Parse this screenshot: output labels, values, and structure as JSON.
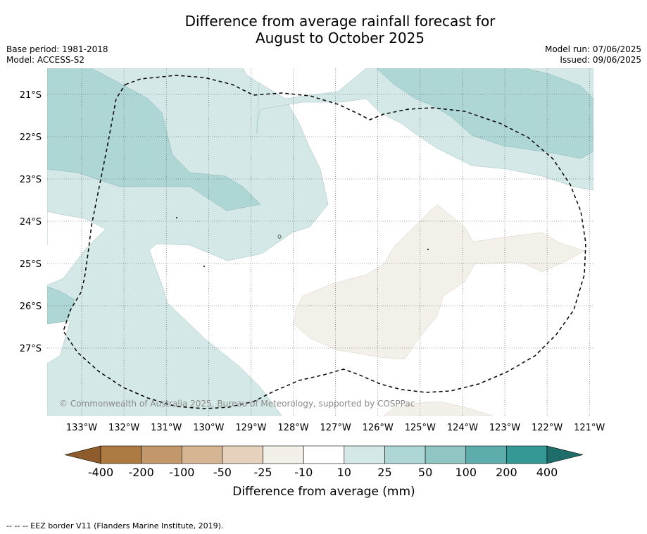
{
  "title_line1": "Difference from average rainfall forecast for",
  "title_line2": "August to October 2025",
  "base_period": "Base period: 1981-2018",
  "model": "Model: ACCESS-S2",
  "model_run": "Model run: 07/06/2025",
  "issued": "Issued: 09/06/2025",
  "copyright": "© Commonwealth of Australia 2025, Bureau of Meteorology, supported by COSPPac",
  "footer": "--  --  -- EEZ border V11 (Flanders Marine Institute, 2019).",
  "map": {
    "lon_range": [
      -133.8,
      -120.9
    ],
    "lat_range": [
      -20.4,
      -28.6
    ],
    "lat_ticks": [
      "21°S",
      "22°S",
      "23°S",
      "24°S",
      "25°S",
      "26°S",
      "27°S"
    ],
    "lon_ticks": [
      "133°W",
      "132°W",
      "131°W",
      "130°W",
      "129°W",
      "128°W",
      "127°W",
      "126°W",
      "125°W",
      "124°W",
      "123°W",
      "122°W",
      "121°W"
    ],
    "layers": [
      {
        "category": "10 to 25",
        "color": "#d4e9e7"
      },
      {
        "category": "25 to 50",
        "color": "#add6d5"
      },
      {
        "category": "-25 to -10",
        "color": "#f3efe9"
      },
      {
        "category": "EEZ border",
        "color": "#000000"
      }
    ]
  },
  "colorbar": {
    "title": "Difference from average (mm)",
    "ticks": [
      "-400",
      "-200",
      "-100",
      "-50",
      "-25",
      "-10",
      "10",
      "25",
      "50",
      "100",
      "200",
      "400"
    ],
    "colors": [
      "#ad7a41",
      "#c29769",
      "#d5b592",
      "#e6d1bd",
      "#f3efe9",
      "#ffffff",
      "#d4e9e7",
      "#add6d5",
      "#8fc6c3",
      "#5eadad",
      "#349995"
    ],
    "low_extend_color": "#8e5b2a",
    "high_extend_color": "#1e6d6b"
  }
}
